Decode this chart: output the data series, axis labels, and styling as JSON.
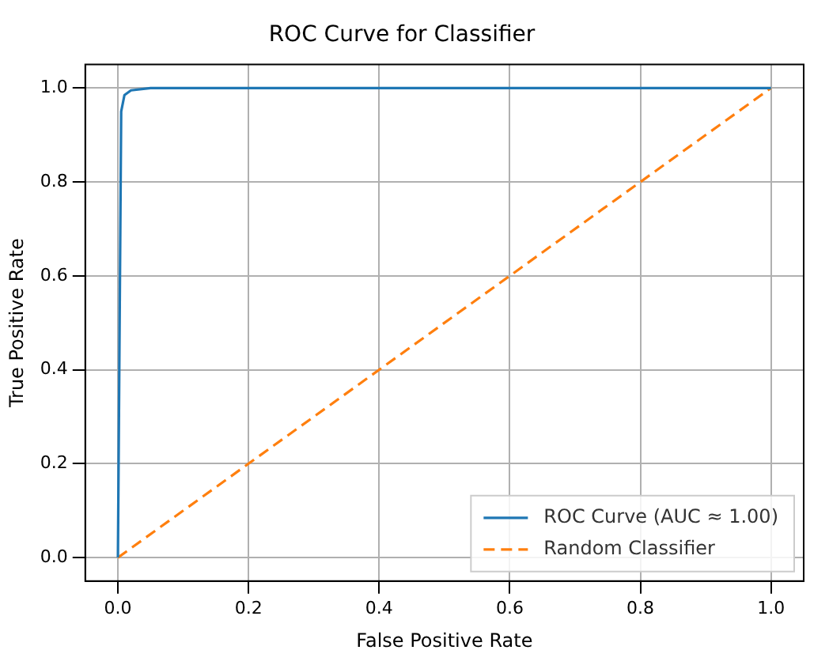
{
  "chart_data": {
    "type": "line",
    "title": "ROC Curve for Classifier",
    "xlabel": "False Positive Rate",
    "ylabel": "True Positive Rate",
    "series": [
      {
        "name": "ROC Curve (AUC ≈ 1.00)",
        "color": "#1f77b4",
        "x": [
          0,
          0.005,
          0.01,
          0.02,
          0.05,
          1
        ],
        "values": [
          0,
          0.95,
          0.985,
          0.995,
          1,
          1
        ],
        "line_style": "solid"
      },
      {
        "name": "Random Classifier",
        "color": "#ff7f0e",
        "x": [
          0,
          1
        ],
        "values": [
          0,
          1
        ],
        "line_style": "dashed"
      }
    ],
    "xlim": [
      -0.05,
      1.05
    ],
    "ylim": [
      -0.05,
      1.05
    ],
    "xticks": [
      {
        "value": 0,
        "label": "0.0"
      },
      {
        "value": 0.2,
        "label": "0.2"
      },
      {
        "value": 0.4,
        "label": "0.4"
      },
      {
        "value": 0.6,
        "label": "0.6"
      },
      {
        "value": 0.8,
        "label": "0.8"
      },
      {
        "value": 1,
        "label": "1.0"
      }
    ],
    "yticks": [
      {
        "value": 0,
        "label": "0.0"
      },
      {
        "value": 0.2,
        "label": "0.2"
      },
      {
        "value": 0.4,
        "label": "0.4"
      },
      {
        "value": 0.6,
        "label": "0.6"
      },
      {
        "value": 0.8,
        "label": "0.8"
      },
      {
        "value": 1,
        "label": "1.0"
      }
    ],
    "grid": true,
    "legend": "bottom right",
    "marker": "none"
  }
}
